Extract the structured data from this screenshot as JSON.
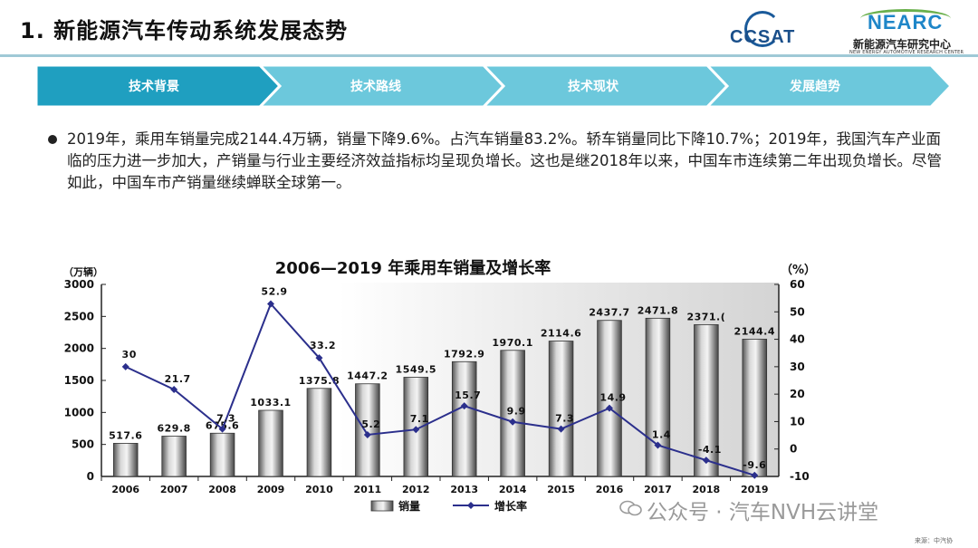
{
  "header": {
    "title": "1.  新能源汽车传动系统发展态势"
  },
  "logos": {
    "ccsat": "CCSAT",
    "nearc": "NEARC",
    "nearc_cn": "新能源汽车研究中心",
    "nearc_en": "NEW ENERGY AUTOMOTIVE RESEARCH CENTER"
  },
  "nav": {
    "steps": [
      "技术背景",
      "技术路线",
      "技术现状",
      "发展趋势"
    ],
    "active_index": 0,
    "colors": {
      "active": "#1f9fc0",
      "inactive": "#6cc8dc"
    }
  },
  "bullet": {
    "text": "2019年，乘用车销量完成2144.4万辆，销量下降9.6%。占汽车销量83.2%。轿车销量同比下降10.7%；2019年，我国汽车产业面临的压力进一步加大，产销量与行业主要经济效益指标均呈现负增长。这也是继2018年以来，中国车市连续第二年出现负增长。尽管如此，中国车市产销量继续蝉联全球第一。"
  },
  "chart_data": {
    "type": "bar+line",
    "title": "2006—2019 年乘用车销量及增长率",
    "left_unit": "（万辆）",
    "right_unit": "（%）",
    "categories": [
      "2006",
      "2007",
      "2008",
      "2009",
      "2010",
      "2011",
      "2012",
      "2013",
      "2014",
      "2015",
      "2016",
      "2017",
      "2018",
      "2019"
    ],
    "left_ticks": [
      "0",
      "500",
      "1000",
      "1500",
      "2000",
      "2500",
      "3000"
    ],
    "right_ticks": [
      "-10",
      "0",
      "10",
      "20",
      "30",
      "40",
      "50",
      "60"
    ],
    "ylim_left": [
      0,
      3000
    ],
    "ylim_right": [
      -10,
      60
    ],
    "series": [
      {
        "name": "销量",
        "kind": "bar",
        "axis": "left",
        "values": [
          517.6,
          629.8,
          675.6,
          1033.1,
          1375.8,
          1447.2,
          1549.5,
          1792.9,
          1970.1,
          2114.6,
          2437.7,
          2471.8,
          2371.0,
          2144.4
        ],
        "labels": [
          "517.6",
          "629.8",
          "675.6",
          "1033.1",
          "1375.8",
          "1447.2",
          "1549.5",
          "1792.9",
          "1970.1",
          "2114.6",
          "2437.7",
          "2471.8",
          "2371.(",
          "2144.4"
        ]
      },
      {
        "name": "增长率",
        "kind": "line",
        "axis": "right",
        "values": [
          30,
          21.7,
          7.3,
          52.9,
          33.2,
          5.2,
          7.1,
          15.7,
          9.9,
          7.3,
          14.9,
          1.4,
          -4.1,
          -9.6
        ],
        "labels": [
          "30",
          "21.7",
          "7.3",
          "52.9",
          "33.2",
          "5.2",
          "7.1",
          "15.7",
          "9.9",
          "7.3",
          "14.9",
          "1.4",
          "-4.1",
          "-9.6"
        ],
        "color": "#2b2f8c"
      }
    ],
    "legend_position": "bottom",
    "grid": false
  },
  "watermark": "公众号 · 汽车NVH云讲堂",
  "source_note": "来源：中汽协"
}
